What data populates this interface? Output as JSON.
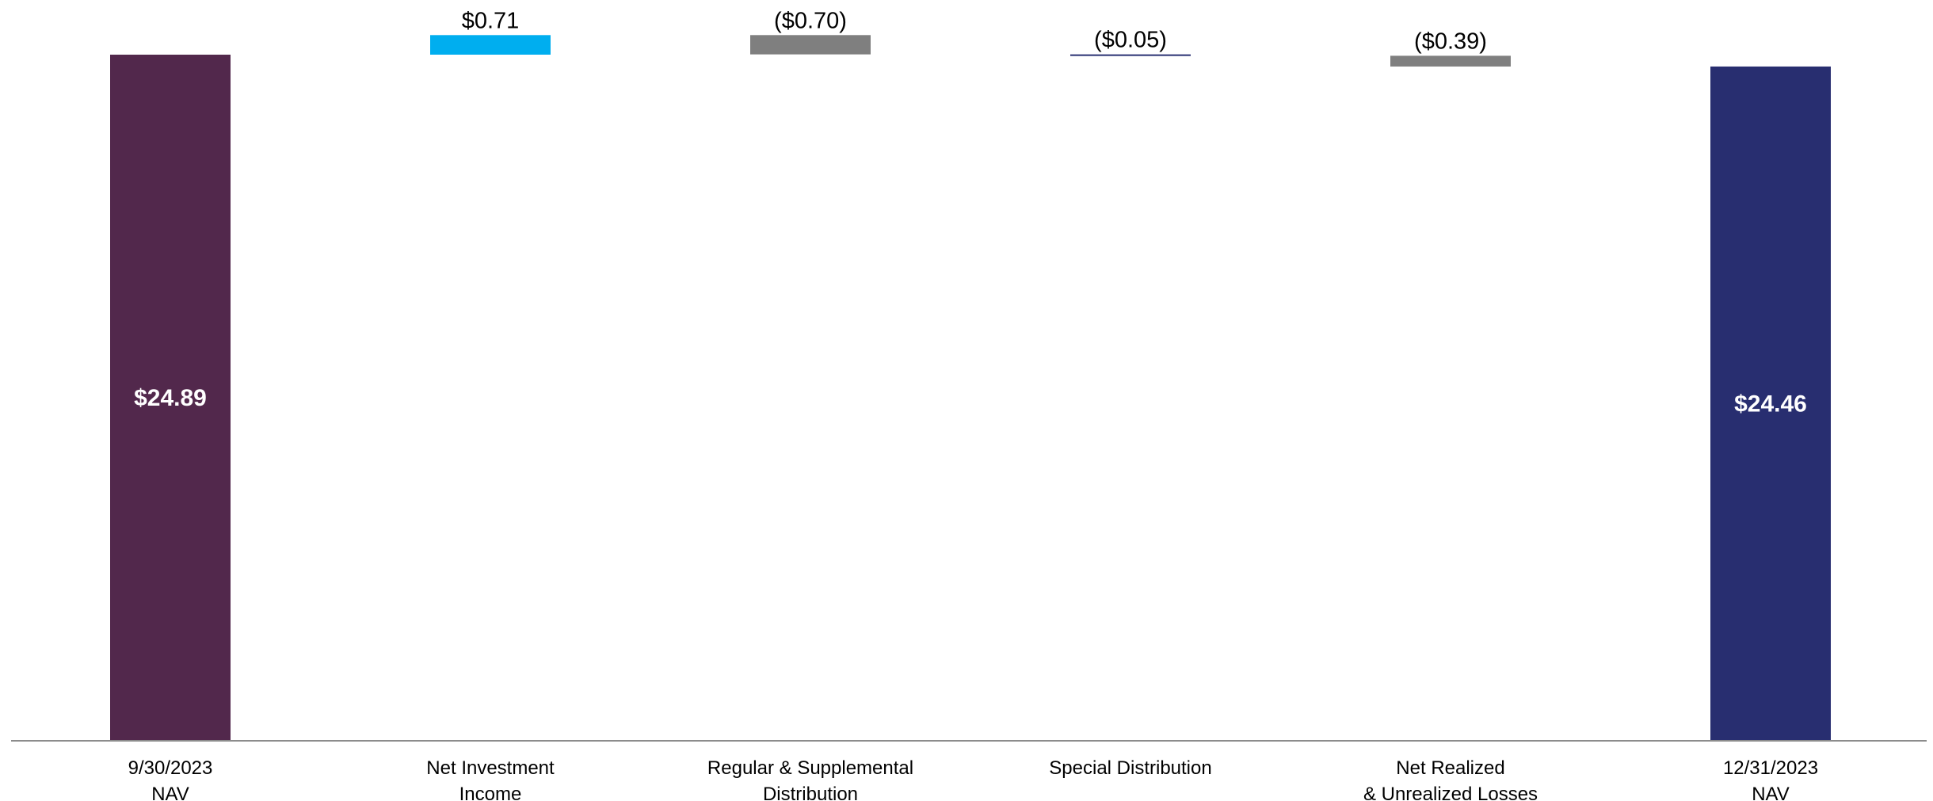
{
  "chart_data": {
    "type": "bar",
    "subtype": "waterfall",
    "title": "",
    "xlabel": "",
    "ylabel": "",
    "grid": false,
    "legend": "none",
    "categories": [
      [
        "9/30/2023",
        "NAV"
      ],
      [
        "Net Investment",
        "Income"
      ],
      [
        "Regular & Supplemental",
        "Distribution"
      ],
      [
        "Special Distribution"
      ],
      [
        "Net Realized",
        "& Unrealized Losses"
      ],
      [
        "12/31/2023",
        "NAV"
      ]
    ],
    "values": [
      24.89,
      0.71,
      -0.7,
      -0.05,
      -0.39,
      24.46
    ],
    "kinds": [
      "total",
      "delta",
      "delta",
      "delta",
      "delta",
      "total"
    ],
    "labels": [
      "$24.89",
      "$0.71",
      "($0.70)",
      "($0.05)",
      "($0.39)",
      "$24.46"
    ],
    "colors": [
      "#52284c",
      "#00aeef",
      "#7f7f7f",
      "#283072",
      "#7f7f7f",
      "#282e70"
    ],
    "ylim": [
      0,
      24.89
    ]
  }
}
